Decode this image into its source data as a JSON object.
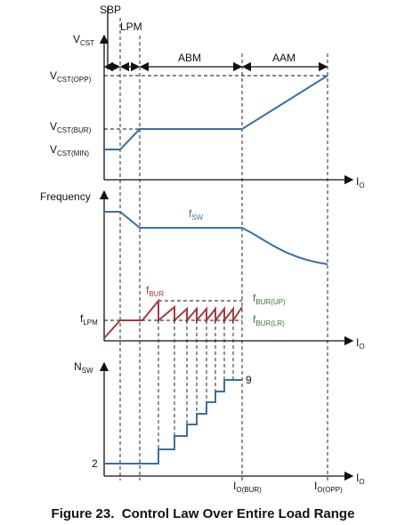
{
  "modes": {
    "sbp": "SBP",
    "lpm": "LPM",
    "abm": "ABM",
    "aam": "AAM"
  },
  "top": {
    "axis": {
      "main": "V",
      "sub": "CST"
    },
    "opp": {
      "main": "V",
      "sub": "CST(OPP)"
    },
    "bur": {
      "main": "V",
      "sub": "CST(BUR)"
    },
    "min": {
      "main": "V",
      "sub": "CST(MIN)"
    },
    "x_axis": {
      "main": "I",
      "sub": "O"
    }
  },
  "middle": {
    "axis": "Frequency",
    "fsw": {
      "main": "f",
      "sub": "SW"
    },
    "fbur": {
      "main": "f",
      "sub": "BUR"
    },
    "fbur_up": {
      "main": "f",
      "sub": "BUR(UP)"
    },
    "fbur_lr": {
      "main": "f",
      "sub": "BUR(LR)"
    },
    "flpm": {
      "main": "f",
      "sub": "LPM"
    },
    "x_axis": {
      "main": "I",
      "sub": "O"
    }
  },
  "bottom": {
    "axis": {
      "main": "N",
      "sub": "SW"
    },
    "max": "9",
    "min": "2",
    "x_axis": {
      "main": "I",
      "sub": "O"
    },
    "io_bur": {
      "main": "I",
      "sub": "O(BUR)"
    },
    "io_opp": {
      "main": "I",
      "sub": "O(OPP)"
    }
  },
  "caption": "Figure 23.  Control Law Over Entire Load Range"
}
